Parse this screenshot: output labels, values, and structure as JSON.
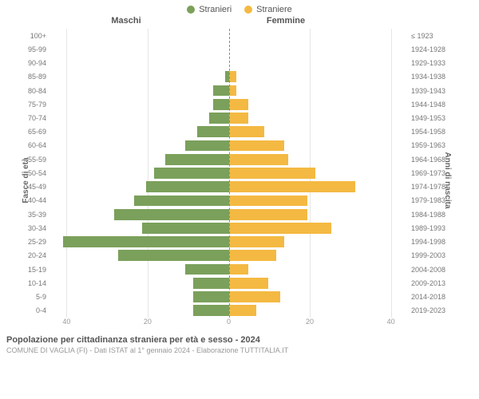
{
  "legend": {
    "male": "Stranieri",
    "female": "Straniere"
  },
  "headers": {
    "male": "Maschi",
    "female": "Femmine"
  },
  "axis_titles": {
    "left": "Fasce di età",
    "right": "Anni di nascita"
  },
  "chart": {
    "type": "population-pyramid",
    "colors": {
      "male": "#7ba05b",
      "female": "#f4b942",
      "grid": "#e6e6e6",
      "centerline": "#888888",
      "bg": "#ffffff"
    },
    "bar_height_pct": 80,
    "x_max": 45,
    "x_ticks_labels": [
      "40",
      "20",
      "0",
      "20",
      "40"
    ],
    "x_ticks_vals": [
      -40,
      -20,
      0,
      20,
      40
    ],
    "fontsize": {
      "tick": 9,
      "axis_title": 10,
      "header": 11,
      "legend": 11,
      "title": 11,
      "subtitle": 9
    }
  },
  "rows": [
    {
      "age": "100+",
      "birth": "≤ 1923",
      "m": 0,
      "f": 0
    },
    {
      "age": "95-99",
      "birth": "1924-1928",
      "m": 0,
      "f": 0
    },
    {
      "age": "90-94",
      "birth": "1929-1933",
      "m": 0,
      "f": 0
    },
    {
      "age": "85-89",
      "birth": "1934-1938",
      "m": 1,
      "f": 2
    },
    {
      "age": "80-84",
      "birth": "1939-1943",
      "m": 4,
      "f": 2
    },
    {
      "age": "75-79",
      "birth": "1944-1948",
      "m": 4,
      "f": 5
    },
    {
      "age": "70-74",
      "birth": "1949-1953",
      "m": 5,
      "f": 5
    },
    {
      "age": "65-69",
      "birth": "1954-1958",
      "m": 8,
      "f": 9
    },
    {
      "age": "60-64",
      "birth": "1959-1963",
      "m": 11,
      "f": 14
    },
    {
      "age": "55-59",
      "birth": "1964-1968",
      "m": 16,
      "f": 15
    },
    {
      "age": "50-54",
      "birth": "1969-1973",
      "m": 19,
      "f": 22
    },
    {
      "age": "45-49",
      "birth": "1974-1978",
      "m": 21,
      "f": 32
    },
    {
      "age": "40-44",
      "birth": "1979-1983",
      "m": 24,
      "f": 20
    },
    {
      "age": "35-39",
      "birth": "1984-1988",
      "m": 29,
      "f": 20
    },
    {
      "age": "30-34",
      "birth": "1989-1993",
      "m": 22,
      "f": 26
    },
    {
      "age": "25-29",
      "birth": "1994-1998",
      "m": 42,
      "f": 14
    },
    {
      "age": "20-24",
      "birth": "1999-2003",
      "m": 28,
      "f": 12
    },
    {
      "age": "15-19",
      "birth": "2004-2008",
      "m": 11,
      "f": 5
    },
    {
      "age": "10-14",
      "birth": "2009-2013",
      "m": 9,
      "f": 10
    },
    {
      "age": "5-9",
      "birth": "2014-2018",
      "m": 9,
      "f": 13
    },
    {
      "age": "0-4",
      "birth": "2019-2023",
      "m": 9,
      "f": 7
    }
  ],
  "footer": {
    "title": "Popolazione per cittadinanza straniera per età e sesso - 2024",
    "subtitle": "COMUNE DI VAGLIA (FI) - Dati ISTAT al 1° gennaio 2024 - Elaborazione TUTTITALIA.IT"
  }
}
